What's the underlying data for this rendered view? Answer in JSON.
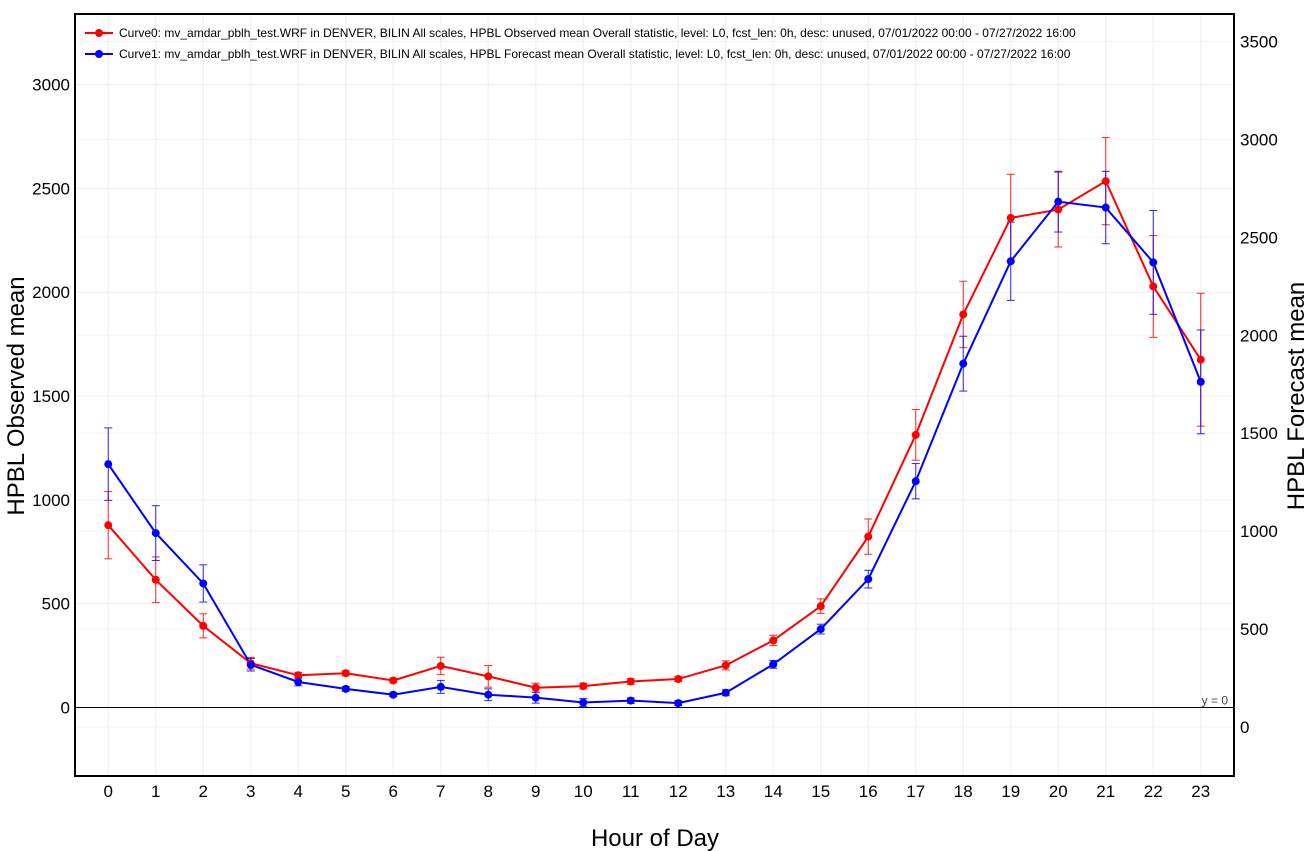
{
  "chart_data": {
    "type": "line",
    "xlabel": "Hour of Day",
    "ylabel_left": "HPBL Observed mean",
    "ylabel_right": "HPBL Forecast mean",
    "x": [
      0,
      1,
      2,
      3,
      4,
      5,
      6,
      7,
      8,
      9,
      10,
      11,
      12,
      13,
      14,
      15,
      16,
      17,
      18,
      19,
      20,
      21,
      22,
      23
    ],
    "xlim": [
      -0.7,
      23.7
    ],
    "ylim_left": [
      -330,
      3340
    ],
    "ylim_right": [
      -250,
      3640
    ],
    "yticks_left": [
      0,
      500,
      1000,
      1500,
      2000,
      2500,
      3000
    ],
    "yticks_right": [
      0,
      500,
      1000,
      1500,
      2000,
      2500,
      3000,
      3500
    ],
    "grid": true,
    "legend_position": "top-left",
    "zero_line_label": "y = 0",
    "series": [
      {
        "name": "Curve0: mv_amdar_pblh_test.WRF in DENVER, BILIN All scales, HPBL Observed mean Overall statistic, level: L0, fcst_len: 0h, desc: unused, 07/01/2022 00:00 - 07/27/2022 16:00",
        "color": "#ff0000",
        "axis": "left",
        "values": [
          878,
          615,
          393,
          213,
          155,
          165,
          130,
          200,
          150,
          95,
          103,
          125,
          137,
          203,
          323,
          488,
          823,
          1313,
          1893,
          2358,
          2398,
          2535,
          2028,
          1675
        ],
        "error": [
          162,
          110,
          58,
          28,
          14,
          12,
          10,
          42,
          52,
          22,
          14,
          14,
          12,
          22,
          25,
          35,
          85,
          122,
          160,
          210,
          180,
          210,
          245,
          320
        ]
      },
      {
        "name": "Curve1: mv_amdar_pblh_test.WRF in DENVER, BILIN All scales, HPBL Forecast mean Overall statistic, level: L0, fcst_len: 0h, desc: unused, 07/01/2022 00:00 - 07/27/2022 16:00",
        "color": "#0000ff",
        "axis": "right",
        "values": [
          1342,
          990,
          733,
          318,
          230,
          195,
          165,
          205,
          165,
          150,
          125,
          135,
          122,
          175,
          320,
          500,
          755,
          1255,
          1855,
          2378,
          2682,
          2652,
          2372,
          1762
        ],
        "error": [
          185,
          140,
          95,
          32,
          20,
          12,
          10,
          33,
          30,
          28,
          20,
          14,
          12,
          15,
          20,
          25,
          45,
          90,
          140,
          200,
          155,
          185,
          265,
          265
        ]
      }
    ]
  }
}
